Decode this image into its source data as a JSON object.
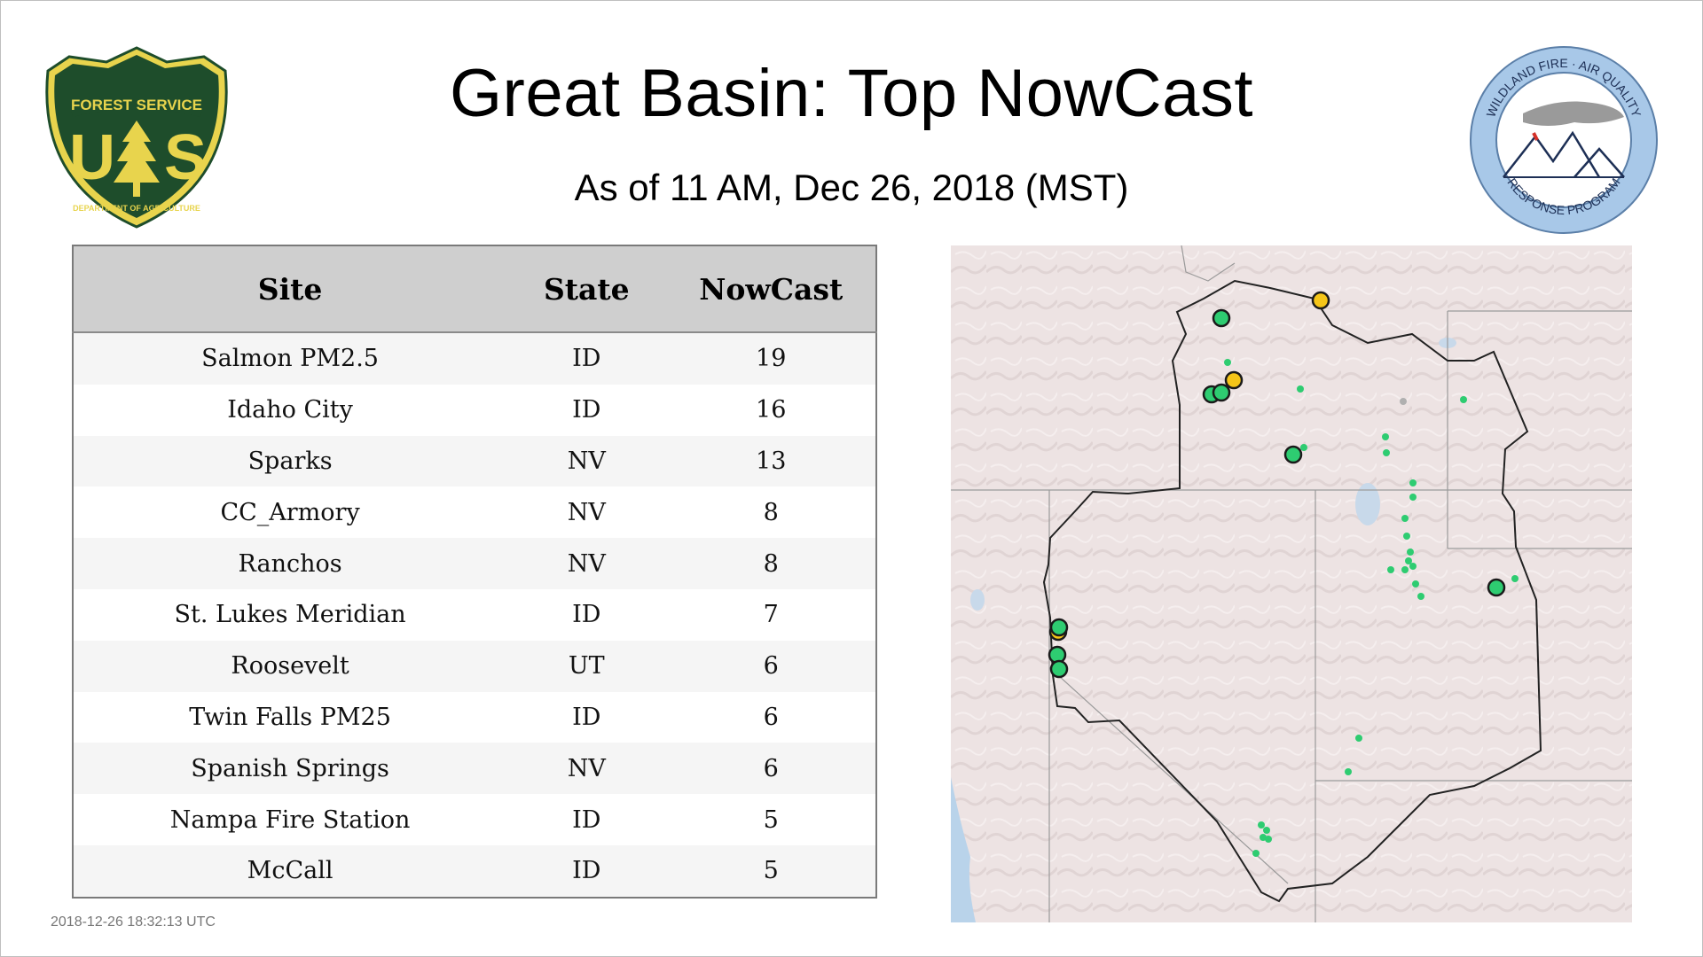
{
  "title": "Great Basin: Top NowCast",
  "subtitle": "As of 11 AM, Dec 26, 2018 (MST)",
  "usfs_logo": {
    "arc_text": "FOREST SERVICE",
    "letters": "U S",
    "bottom_text": "DEPARTMENT OF AGRICULTURE"
  },
  "wfaq_logo": {
    "top_text": "WILDLAND FIRE · AIR QUALITY",
    "bottom_text": "RESPONSE PROGRAM"
  },
  "table": {
    "headers": {
      "site": "Site",
      "state": "State",
      "nowcast": "NowCast"
    },
    "rows": [
      {
        "site": "Salmon PM2.5",
        "state": "ID",
        "nowcast": "19"
      },
      {
        "site": "Idaho City",
        "state": "ID",
        "nowcast": "16"
      },
      {
        "site": "Sparks",
        "state": "NV",
        "nowcast": "13"
      },
      {
        "site": "CC_Armory",
        "state": "NV",
        "nowcast": "8"
      },
      {
        "site": "Ranchos",
        "state": "NV",
        "nowcast": "8"
      },
      {
        "site": "St. Lukes Meridian",
        "state": "ID",
        "nowcast": "7"
      },
      {
        "site": "Roosevelt",
        "state": "UT",
        "nowcast": "6"
      },
      {
        "site": "Twin Falls PM25",
        "state": "ID",
        "nowcast": "6"
      },
      {
        "site": "Spanish Springs",
        "state": "NV",
        "nowcast": "6"
      },
      {
        "site": "Nampa Fire Station",
        "state": "ID",
        "nowcast": "5"
      },
      {
        "site": "McCall",
        "state": "ID",
        "nowcast": "5"
      }
    ]
  },
  "timestamp": "2018-12-26 18:32:13 UTC",
  "colors": {
    "aqi_good": "#2ecc71",
    "aqi_moderate": "#f5c518",
    "no_data": "#b0b0b0",
    "map_land": "#ede3e3",
    "map_water": "#b9d3ea",
    "usfs_green": "#1e4d2b",
    "usfs_yellow": "#e8d44d",
    "wfaq_blue": "#a8c8e8"
  }
}
